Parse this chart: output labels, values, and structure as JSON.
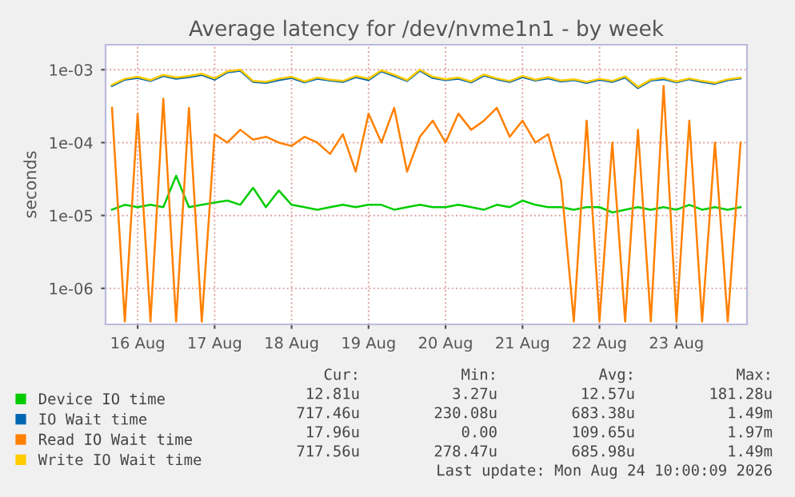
{
  "chart_data": {
    "type": "line",
    "title": "Average latency for /dev/nvme1n1 - by week",
    "ylabel": "seconds",
    "log": "y",
    "grid": true,
    "legend": "bottom",
    "xlim": [
      "2026-08-16T02:00",
      "2026-08-24T10:00"
    ],
    "xticks": [
      {
        "value": "2026-08-16T12:00",
        "label": "16 Aug"
      },
      {
        "value": "2026-08-17T12:00",
        "label": "17 Aug"
      },
      {
        "value": "2026-08-18T12:00",
        "label": "18 Aug"
      },
      {
        "value": "2026-08-19T12:00",
        "label": "19 Aug"
      },
      {
        "value": "2026-08-20T12:00",
        "label": "20 Aug"
      },
      {
        "value": "2026-08-21T12:00",
        "label": "21 Aug"
      },
      {
        "value": "2026-08-22T12:00",
        "label": "22 Aug"
      },
      {
        "value": "2026-08-23T12:00",
        "label": "23 Aug"
      }
    ],
    "ylim": [
      3.2e-07,
      0.0022
    ],
    "yticks": [
      {
        "value": 1e-06,
        "label": "1e-06"
      },
      {
        "value": 1e-05,
        "label": "1e-05"
      },
      {
        "value": 0.0001,
        "label": "1e-04"
      },
      {
        "value": 0.001,
        "label": "1e-03"
      }
    ],
    "x": [
      "2026-08-16T04:00",
      "2026-08-16T08:00",
      "2026-08-16T12:00",
      "2026-08-16T16:00",
      "2026-08-16T20:00",
      "2026-08-17T00:00",
      "2026-08-17T04:00",
      "2026-08-17T08:00",
      "2026-08-17T12:00",
      "2026-08-17T16:00",
      "2026-08-17T20:00",
      "2026-08-18T00:00",
      "2026-08-18T04:00",
      "2026-08-18T08:00",
      "2026-08-18T12:00",
      "2026-08-18T16:00",
      "2026-08-18T20:00",
      "2026-08-19T00:00",
      "2026-08-19T04:00",
      "2026-08-19T08:00",
      "2026-08-19T12:00",
      "2026-08-19T16:00",
      "2026-08-19T20:00",
      "2026-08-20T00:00",
      "2026-08-20T04:00",
      "2026-08-20T08:00",
      "2026-08-20T12:00",
      "2026-08-20T16:00",
      "2026-08-20T20:00",
      "2026-08-21T00:00",
      "2026-08-21T04:00",
      "2026-08-21T08:00",
      "2026-08-21T12:00",
      "2026-08-21T16:00",
      "2026-08-21T20:00",
      "2026-08-22T00:00",
      "2026-08-22T04:00",
      "2026-08-22T08:00",
      "2026-08-22T12:00",
      "2026-08-22T16:00",
      "2026-08-22T20:00",
      "2026-08-23T00:00",
      "2026-08-23T04:00",
      "2026-08-23T08:00",
      "2026-08-23T12:00",
      "2026-08-23T16:00",
      "2026-08-23T20:00",
      "2026-08-24T00:00",
      "2026-08-24T04:00",
      "2026-08-24T08:00"
    ],
    "series": [
      {
        "name": "Device IO time",
        "color": "#00cc00",
        "values": [
          1.2e-05,
          1.4e-05,
          1.3e-05,
          1.4e-05,
          1.3e-05,
          3.5e-05,
          1.3e-05,
          1.4e-05,
          1.5e-05,
          1.6e-05,
          1.4e-05,
          2.4e-05,
          1.3e-05,
          2.2e-05,
          1.4e-05,
          1.3e-05,
          1.2e-05,
          1.3e-05,
          1.4e-05,
          1.3e-05,
          1.4e-05,
          1.4e-05,
          1.2e-05,
          1.3e-05,
          1.4e-05,
          1.3e-05,
          1.3e-05,
          1.4e-05,
          1.3e-05,
          1.2e-05,
          1.4e-05,
          1.3e-05,
          1.6e-05,
          1.4e-05,
          1.3e-05,
          1.3e-05,
          1.2e-05,
          1.3e-05,
          1.3e-05,
          1.1e-05,
          1.2e-05,
          1.3e-05,
          1.2e-05,
          1.3e-05,
          1.2e-05,
          1.4e-05,
          1.2e-05,
          1.3e-05,
          1.2e-05,
          1.3e-05
        ]
      },
      {
        "name": "IO Wait time",
        "color": "#0066b3",
        "values": [
          0.0006,
          0.00073,
          0.00077,
          0.0007,
          0.00082,
          0.00075,
          0.00079,
          0.00085,
          0.00073,
          0.00092,
          0.00097,
          0.00068,
          0.00066,
          0.00072,
          0.00077,
          0.00067,
          0.00075,
          0.00071,
          0.00068,
          0.00079,
          0.00072,
          0.00095,
          0.00082,
          0.0007,
          0.00097,
          0.00077,
          0.00072,
          0.00075,
          0.00067,
          0.00083,
          0.00074,
          0.00068,
          0.00079,
          0.00071,
          0.00076,
          0.00069,
          0.00072,
          0.00066,
          0.00073,
          0.00068,
          0.00078,
          0.00056,
          0.00071,
          0.00074,
          0.00067,
          0.00074,
          0.00068,
          0.00064,
          0.00072,
          0.00076
        ]
      },
      {
        "name": "Read IO Wait time",
        "color": "#ff8000",
        "values": [
          0.0003,
          3.5e-07,
          0.00025,
          3.5e-07,
          0.0004,
          3.5e-07,
          0.0003,
          3.5e-07,
          0.00013,
          0.0001,
          0.00015,
          0.00011,
          0.00012,
          0.0001,
          9e-05,
          0.00012,
          0.0001,
          7e-05,
          0.00013,
          4e-05,
          0.00025,
          0.0001,
          0.0003,
          4e-05,
          0.00012,
          0.0002,
          0.0001,
          0.00025,
          0.00015,
          0.0002,
          0.0003,
          0.00012,
          0.0002,
          0.0001,
          0.00013,
          3e-05,
          3.5e-07,
          0.0002,
          3.5e-07,
          0.0001,
          3.5e-07,
          0.00015,
          3.5e-07,
          0.0006,
          3.5e-07,
          0.0002,
          3.5e-07,
          0.0001,
          3.5e-07,
          0.0001
        ]
      },
      {
        "name": "Write IO Wait time",
        "color": "#ffcc00",
        "values": [
          0.00062,
          0.00075,
          0.0008,
          0.00072,
          0.00085,
          0.00078,
          0.00082,
          0.00088,
          0.00076,
          0.00095,
          0.001,
          0.0007,
          0.00068,
          0.00075,
          0.0008,
          0.00069,
          0.00078,
          0.00073,
          0.0007,
          0.00082,
          0.00075,
          0.00098,
          0.00085,
          0.00072,
          0.001,
          0.0008,
          0.00074,
          0.00078,
          0.00069,
          0.00086,
          0.00076,
          0.0007,
          0.00082,
          0.00073,
          0.00079,
          0.00071,
          0.00074,
          0.00068,
          0.00075,
          0.0007,
          0.00081,
          0.00058,
          0.00073,
          0.00077,
          0.00069,
          0.00076,
          0.0007,
          0.00066,
          0.00074,
          0.00078
        ]
      }
    ],
    "annotations": [
      "Cur:",
      "Min:",
      "Avg:",
      "Max:",
      "12.81u",
      "3.27u",
      "12.57u",
      "181.28u",
      "717.46u",
      "230.08u",
      "683.38u",
      "1.49m",
      "17.96u",
      "0.00",
      "109.65u",
      "1.97m",
      "717.56u",
      "278.47u",
      "685.98u",
      "1.49m",
      "Last update: Mon Aug 24 10:00:09 2026"
    ]
  }
}
